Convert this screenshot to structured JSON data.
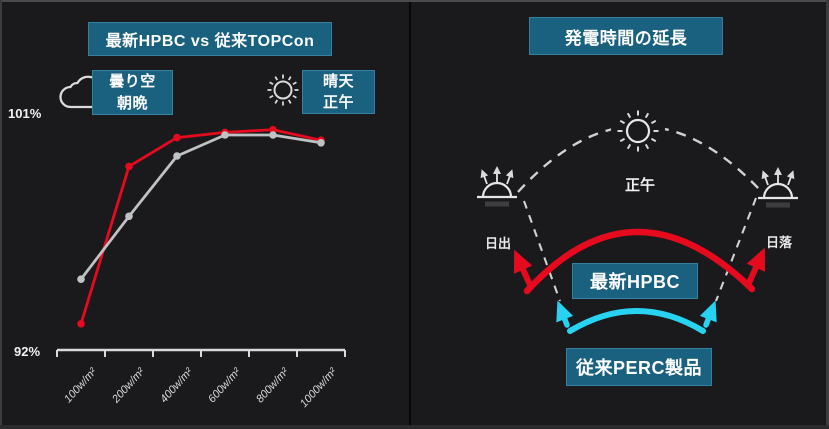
{
  "colors": {
    "background": "#1a1a1c",
    "accent_box": "#19617f",
    "accent_box_border": "#35809f",
    "red": "#e60a1e",
    "cyan": "#27d3f0",
    "gray_series": "#bfc2c4",
    "axis": "#d9dadb",
    "dashed": "#cfd1d3"
  },
  "left_panel": {
    "title": "最新HPBC vs 従来TOPCon",
    "cloudy_legend": {
      "icon": "cloud-icon",
      "line1": "曇り空",
      "line2": "朝晩"
    },
    "sunny_legend": {
      "icon": "sun-icon",
      "line1": "晴天",
      "line2": "正午"
    },
    "y_axis": {
      "top_label": "101%",
      "bottom_label": "92%"
    }
  },
  "chart_data": {
    "type": "line",
    "title": "最新HPBC vs 従来TOPCon",
    "categories": [
      "100w/m²",
      "200w/m²",
      "400w/m²",
      "600w/m²",
      "800w/m²",
      "1000w/m²"
    ],
    "series": [
      {
        "name": "最新HPBC",
        "color": "#e60a1e",
        "values": [
          93.0,
          99.0,
          100.1,
          100.3,
          100.4,
          100.0
        ]
      },
      {
        "name": "従来TOPCon",
        "color": "#bfc2c4",
        "values": [
          94.7,
          97.1,
          99.4,
          100.2,
          100.2,
          99.9
        ]
      }
    ],
    "xlabel": "",
    "ylabel": "",
    "ylim": [
      92,
      101
    ],
    "y_tick_labels": [
      "92%",
      "101%"
    ],
    "grid": false,
    "legend_position": "top (icon badges: cloudy morning/evening at left, sunny noon at right)"
  },
  "right_panel": {
    "title": "発電時間の延長",
    "noon_label": "正午",
    "sunrise_label": "日出",
    "sunset_label": "日落",
    "hpbc_arc_label": "最新HPBC",
    "perc_arc_label": "従来PERC製品"
  }
}
